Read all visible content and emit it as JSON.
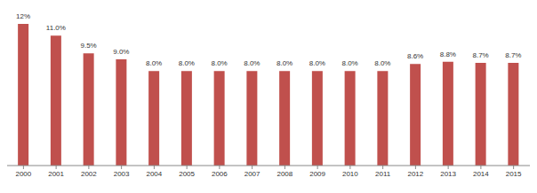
{
  "chart_data": {
    "type": "bar",
    "categories": [
      "2000",
      "2001",
      "2002",
      "2003",
      "2004",
      "2005",
      "2006",
      "2007",
      "2008",
      "2009",
      "2010",
      "2011",
      "2012",
      "2013",
      "2014",
      "2015"
    ],
    "values": [
      12,
      11.0,
      9.5,
      9.0,
      8.0,
      8.0,
      8.0,
      8.0,
      8.0,
      8.0,
      8.0,
      8.0,
      8.6,
      8.8,
      8.7,
      8.7
    ],
    "value_labels": [
      "12%",
      "11.0%",
      "9.5%",
      "9.0%",
      "8.0%",
      "8.0%",
      "8.0%",
      "8.0%",
      "8.0%",
      "8.0%",
      "8.0%",
      "8.0%",
      "8.6%",
      "8.8%",
      "8.7%",
      "8.7%"
    ],
    "color": "#c0504d",
    "ylim": [
      0,
      12
    ],
    "data_labels": true,
    "tick_labels": "x"
  }
}
